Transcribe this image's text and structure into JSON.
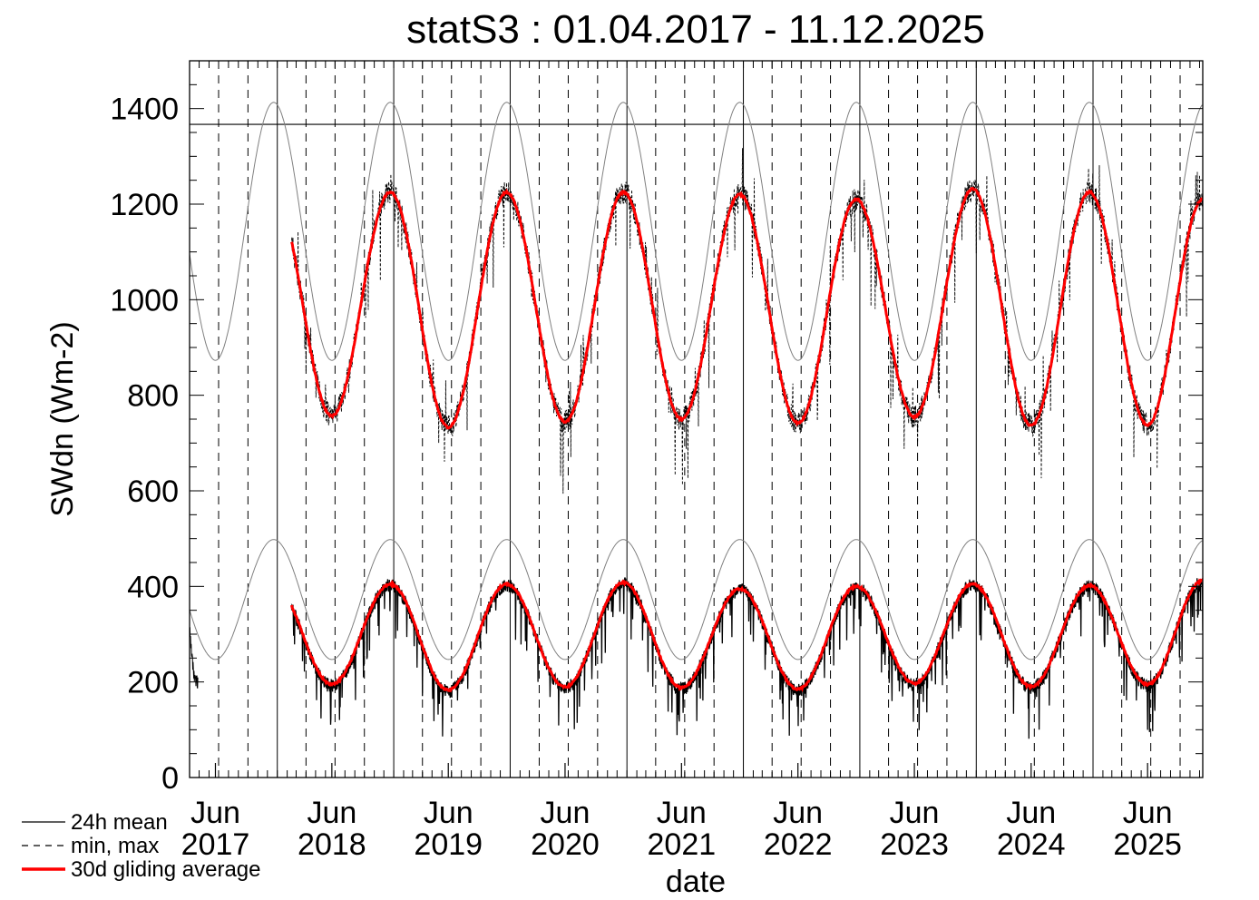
{
  "chart_data": {
    "type": "line",
    "title": "statS3 : 01.04.2017 - 11.12.2025",
    "xlabel": "date",
    "ylabel": "SWdn (Wm-2)",
    "xlim": [
      "2017-04-01",
      "2025-12-11"
    ],
    "ylim": [
      0,
      1500
    ],
    "y_ticks": [
      "0",
      "200",
      "400",
      "600",
      "800",
      "1000",
      "1200",
      "1400"
    ],
    "x_ticks": [
      {
        "month": "Jun",
        "year": "2017",
        "date": "2017-06-21"
      },
      {
        "month": "Jun",
        "year": "2018",
        "date": "2018-06-21"
      },
      {
        "month": "Jun",
        "year": "2019",
        "date": "2019-06-21"
      },
      {
        "month": "Jun",
        "year": "2020",
        "date": "2020-06-21"
      },
      {
        "month": "Jun",
        "year": "2021",
        "date": "2021-06-21"
      },
      {
        "month": "Jun",
        "year": "2022",
        "date": "2022-06-21"
      },
      {
        "month": "Jun",
        "year": "2023",
        "date": "2023-06-21"
      },
      {
        "month": "Jun",
        "year": "2024",
        "date": "2024-06-21"
      },
      {
        "month": "Jun",
        "year": "2025",
        "date": "2025-06-21"
      }
    ],
    "reference_line": 1367,
    "grid": {
      "solid_vertical": "January 1 of each year",
      "dashed_vertical": "every three months"
    },
    "legend_position": "bottom-left",
    "legend": [
      {
        "label": "24h mean",
        "style": "solid",
        "color": "#000000"
      },
      {
        "label": "min, max",
        "style": "dashed",
        "color": "#000000"
      },
      {
        "label": "30d gliding average",
        "style": "solid",
        "color": "#ff0000"
      }
    ],
    "data_start": "2018-02-15",
    "series": [
      {
        "role": "theoretical max envelope",
        "color": "#808080",
        "min": 873,
        "max": 1413,
        "min_at": "Jun 21",
        "max_at": "Dec 21"
      },
      {
        "role": "theoretical daily mean envelope",
        "color": "#808080",
        "min": 247,
        "max": 498,
        "min_at": "Jun 21",
        "max_at": "Dec 21"
      },
      {
        "name": "30d gliding average",
        "color": "#ff0000",
        "summer_minima": [
          {
            "date": "2018-06-21",
            "value": 195
          },
          {
            "date": "2019-06-21",
            "value": 183
          },
          {
            "date": "2020-06-21",
            "value": 190
          },
          {
            "date": "2021-06-21",
            "value": 188
          },
          {
            "date": "2022-06-21",
            "value": 185
          },
          {
            "date": "2023-06-21",
            "value": 197
          },
          {
            "date": "2024-06-21",
            "value": 190
          },
          {
            "date": "2025-06-21",
            "value": 195
          }
        ],
        "summer_maxima": [
          {
            "date": "2018-12-21",
            "value": 405
          },
          {
            "date": "2019-12-21",
            "value": 405
          },
          {
            "date": "2020-12-21",
            "value": 408
          },
          {
            "date": "2021-12-21",
            "value": 395
          },
          {
            "date": "2022-12-21",
            "value": 400
          },
          {
            "date": "2023-12-21",
            "value": 405
          },
          {
            "date": "2024-12-21",
            "value": 402
          },
          {
            "date": "2025-12-11",
            "value": 412
          }
        ]
      },
      {
        "name": "30d gliding average of max",
        "color": "#ff0000",
        "summer_minima": [
          {
            "date": "2018-06-21",
            "value": 757
          },
          {
            "date": "2019-06-21",
            "value": 733
          },
          {
            "date": "2020-06-21",
            "value": 745
          },
          {
            "date": "2021-06-21",
            "value": 750
          },
          {
            "date": "2022-06-21",
            "value": 742
          },
          {
            "date": "2023-06-21",
            "value": 755
          },
          {
            "date": "2024-06-21",
            "value": 737
          },
          {
            "date": "2025-06-21",
            "value": 738
          }
        ],
        "summer_maxima": [
          {
            "date": "2018-12-21",
            "value": 1225
          },
          {
            "date": "2019-12-21",
            "value": 1225
          },
          {
            "date": "2020-12-21",
            "value": 1225
          },
          {
            "date": "2021-12-21",
            "value": 1220
          },
          {
            "date": "2022-12-21",
            "value": 1210
          },
          {
            "date": "2023-12-21",
            "value": 1232
          },
          {
            "date": "2024-12-21",
            "value": 1225
          },
          {
            "date": "2025-12-11",
            "value": 1210
          }
        ]
      }
    ]
  }
}
